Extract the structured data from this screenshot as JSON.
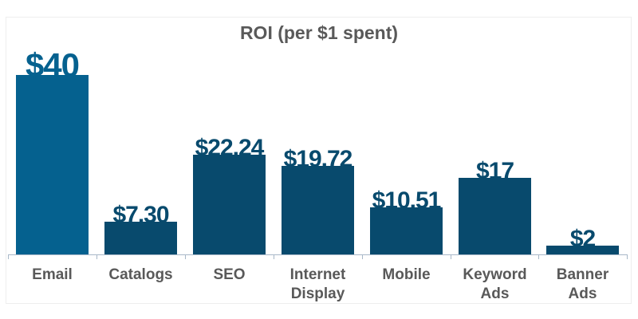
{
  "chart_data": {
    "type": "bar",
    "title": "ROI (per $1 spent)",
    "xlabel": "",
    "ylabel": "",
    "categories": [
      "Email",
      "Catalogs",
      "SEO",
      "Internet Display",
      "Mobile",
      "Keyword Ads",
      "Banner Ads"
    ],
    "values": [
      40,
      7.3,
      22.24,
      19.72,
      10.51,
      17,
      2
    ],
    "value_labels": [
      "$40",
      "$7.30",
      "$22.24",
      "$19.72",
      "$10.51",
      "$17",
      "$2"
    ],
    "ylim": [
      0,
      40
    ],
    "grid": false,
    "legend": "none",
    "colors": {
      "highlight": "#05618f",
      "default": "#084a6d"
    }
  },
  "title": "ROI (per $1 spent)",
  "bars": [
    {
      "label_line1": "Email",
      "label_line2": "",
      "value_label": "$40",
      "color": "#05618f"
    },
    {
      "label_line1": "Catalogs",
      "label_line2": "",
      "value_label": "$7.30",
      "color": "#084a6d"
    },
    {
      "label_line1": "SEO",
      "label_line2": "",
      "value_label": "$22.24",
      "color": "#084a6d"
    },
    {
      "label_line1": "Internet",
      "label_line2": "Display",
      "value_label": "$19.72",
      "color": "#084a6d"
    },
    {
      "label_line1": "Mobile",
      "label_line2": "",
      "value_label": "$10.51",
      "color": "#084a6d"
    },
    {
      "label_line1": "Keyword",
      "label_line2": "Ads",
      "value_label": "$17",
      "color": "#084a6d"
    },
    {
      "label_line1": "Banner",
      "label_line2": "Ads",
      "value_label": "$2",
      "color": "#084a6d"
    }
  ]
}
